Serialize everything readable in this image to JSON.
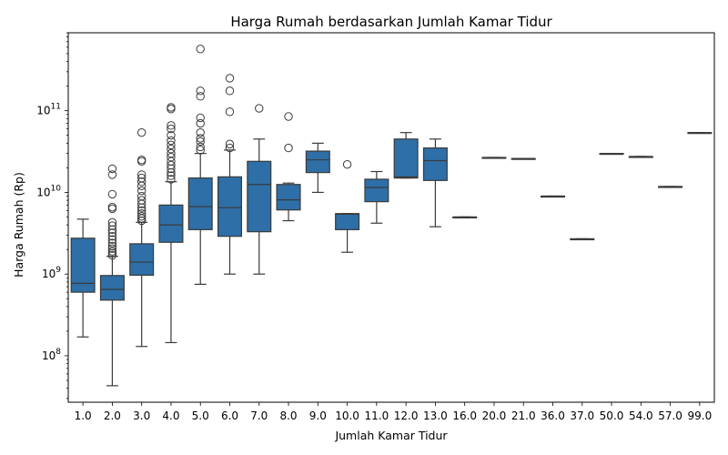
{
  "chart_data": {
    "type": "box",
    "title": "Harga Rumah berdasarkan Jumlah Kamar Tidur",
    "xlabel": "Jumlah Kamar Tidur",
    "ylabel": "Harga Rumah (Rp)",
    "yscale": "log",
    "ylim": [
      27000000,
      900000000000
    ],
    "y_major_ticks": [
      {
        "value": 100000000,
        "base": "10",
        "exp": "8"
      },
      {
        "value": 1000000000,
        "base": "10",
        "exp": "9"
      },
      {
        "value": 10000000000,
        "base": "10",
        "exp": "10"
      },
      {
        "value": 100000000000,
        "base": "10",
        "exp": "11"
      }
    ],
    "grid": false,
    "box_color": "#2e6fa7",
    "categories": [
      "1.0",
      "2.0",
      "3.0",
      "4.0",
      "5.0",
      "6.0",
      "7.0",
      "8.0",
      "9.0",
      "10.0",
      "11.0",
      "12.0",
      "13.0",
      "16.0",
      "20.0",
      "21.0",
      "36.0",
      "37.0",
      "50.0",
      "54.0",
      "57.0",
      "99.0"
    ],
    "boxes": [
      {
        "category": "1.0",
        "whisker_low": 170000000,
        "q1": 600000000,
        "median": 770000000,
        "q3": 2750000000,
        "whisker_high": 4700000000,
        "outliers": []
      },
      {
        "category": "2.0",
        "whisker_low": 43000000,
        "q1": 480000000,
        "median": 650000000,
        "q3": 960000000,
        "whisker_high": 1650000000,
        "outliers": [
          1700000000,
          1800000000,
          1900000000,
          2050000000,
          2200000000,
          2400000000,
          2650000000,
          2900000000,
          3200000000,
          3500000000,
          3900000000,
          4300000000,
          6300000000,
          6600000000,
          9500000000,
          16500000000,
          19500000000
        ]
      },
      {
        "category": "3.0",
        "whisker_low": 130000000,
        "q1": 970000000,
        "median": 1400000000,
        "q3": 2350000000,
        "whisker_high": 4300000000,
        "outliers": [
          4500000000,
          4800000000,
          5100000000,
          5500000000,
          6000000000,
          6500000000,
          7200000000,
          8000000000,
          9000000000,
          10500000000,
          12000000000,
          13500000000,
          15000000000,
          16500000000,
          24000000000,
          25000000000,
          54000000000
        ]
      },
      {
        "category": "4.0",
        "whisker_low": 145000000,
        "q1": 2450000000,
        "median": 4000000000,
        "q3": 7000000000,
        "whisker_high": 13500000000,
        "outliers": [
          14500000000,
          16000000000,
          17500000000,
          19500000000,
          21500000000,
          24000000000,
          27000000000,
          30000000000,
          34000000000,
          38000000000,
          43000000000,
          50000000000,
          60000000000,
          66000000000,
          105000000000,
          110000000000
        ]
      },
      {
        "category": "5.0",
        "whisker_low": 750000000,
        "q1": 3500000000,
        "median": 6700000000,
        "q3": 15000000000,
        "whisker_high": 30000000000,
        "outliers": [
          33000000000,
          36000000000,
          42000000000,
          46000000000,
          54000000000,
          70000000000,
          82000000000,
          150000000000,
          175000000000,
          570000000000
        ]
      },
      {
        "category": "6.0",
        "whisker_low": 1000000000,
        "q1": 2900000000,
        "median": 6500000000,
        "q3": 15500000000,
        "whisker_high": 33000000000,
        "outliers": [
          35000000000,
          39000000000,
          97000000000,
          175000000000,
          250000000000
        ]
      },
      {
        "category": "7.0",
        "whisker_low": 1000000000,
        "q1": 3300000000,
        "median": 12500000000,
        "q3": 24000000000,
        "whisker_high": 45000000000,
        "outliers": [
          107000000000
        ]
      },
      {
        "category": "8.0",
        "whisker_low": 4500000000,
        "q1": 6100000000,
        "median": 8100000000,
        "q3": 12500000000,
        "whisker_high": 13000000000,
        "outliers": [
          35000000000,
          85000000000
        ]
      },
      {
        "category": "9.0",
        "whisker_low": 10000000000,
        "q1": 17500000000,
        "median": 25000000000,
        "q3": 32000000000,
        "whisker_high": 40000000000,
        "outliers": []
      },
      {
        "category": "10.0",
        "whisker_low": 1850000000,
        "q1": 3500000000,
        "median": 5400000000,
        "q3": 5500000000,
        "whisker_high": 5500000000,
        "outliers": [
          22000000000
        ]
      },
      {
        "category": "11.0",
        "whisker_low": 4200000000,
        "q1": 7700000000,
        "median": 11500000000,
        "q3": 14500000000,
        "whisker_high": 18000000000,
        "outliers": []
      },
      {
        "category": "12.0",
        "whisker_low": 15000000000,
        "q1": 15000000000,
        "median": 15500000000,
        "q3": 45000000000,
        "whisker_high": 54000000000,
        "outliers": []
      },
      {
        "category": "13.0",
        "whisker_low": 3800000000,
        "q1": 14000000000,
        "median": 24500000000,
        "q3": 35000000000,
        "whisker_high": 45000000000,
        "outliers": []
      },
      {
        "category": "16.0",
        "whisker_low": 5000000000,
        "q1": 5000000000,
        "median": 5000000000,
        "q3": 5000000000,
        "whisker_high": 5000000000,
        "outliers": []
      },
      {
        "category": "20.0",
        "whisker_low": 26500000000,
        "q1": 26500000000,
        "median": 26500000000,
        "q3": 26800000000,
        "whisker_high": 26800000000,
        "outliers": []
      },
      {
        "category": "21.0",
        "whisker_low": 26000000000,
        "q1": 26000000000,
        "median": 26000000000,
        "q3": 26000000000,
        "whisker_high": 26000000000,
        "outliers": []
      },
      {
        "category": "36.0",
        "whisker_low": 9000000000,
        "q1": 9000000000,
        "median": 9000000000,
        "q3": 9000000000,
        "whisker_high": 9000000000,
        "outliers": []
      },
      {
        "category": "37.0",
        "whisker_low": 2700000000,
        "q1": 2700000000,
        "median": 2700000000,
        "q3": 2700000000,
        "whisker_high": 2700000000,
        "outliers": []
      },
      {
        "category": "50.0",
        "whisker_low": 30000000000,
        "q1": 30000000000,
        "median": 30000000000,
        "q3": 30000000000,
        "whisker_high": 30000000000,
        "outliers": []
      },
      {
        "category": "54.0",
        "whisker_low": 27500000000,
        "q1": 27500000000,
        "median": 27500000000,
        "q3": 27500000000,
        "whisker_high": 27500000000,
        "outliers": []
      },
      {
        "category": "57.0",
        "whisker_low": 11800000000,
        "q1": 11800000000,
        "median": 11800000000,
        "q3": 11800000000,
        "whisker_high": 11800000000,
        "outliers": []
      },
      {
        "category": "99.0",
        "whisker_low": 54000000000,
        "q1": 54000000000,
        "median": 54000000000,
        "q3": 54000000000,
        "whisker_high": 54000000000,
        "outliers": []
      }
    ]
  }
}
